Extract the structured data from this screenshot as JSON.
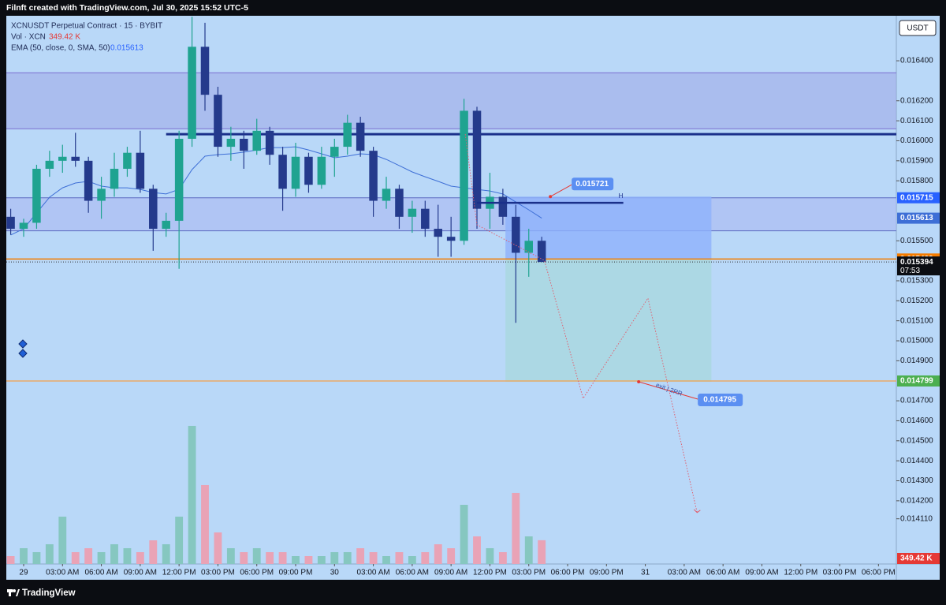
{
  "header": {
    "title": "Filnft created with TradingView.com, Jul 30, 2025 15:52 UTC-5"
  },
  "footer": {
    "brand": "TradingView"
  },
  "chart_data": {
    "type": "candlestick",
    "title": "XCNUSDT Perpetual Contract · 15 · BYBIT",
    "currency": "USDT",
    "countdown": "07:53",
    "grid": false,
    "x": [
      -1,
      0,
      1,
      2,
      3,
      4,
      5,
      6,
      7,
      8,
      9,
      10,
      11,
      12,
      13,
      14,
      15,
      16,
      17,
      18,
      19,
      20,
      21,
      22,
      23,
      24,
      25,
      26,
      27,
      28,
      29,
      30,
      31,
      32,
      33,
      34,
      35,
      36,
      37,
      38,
      39,
      40
    ],
    "xlim": [
      -1.339,
      67.38
    ],
    "xticks": [
      {
        "value": 0,
        "label": "29"
      },
      {
        "value": 3,
        "label": "03:00 AM"
      },
      {
        "value": 6,
        "label": "06:00 AM"
      },
      {
        "value": 9,
        "label": "09:00 AM"
      },
      {
        "value": 12,
        "label": "12:00 PM"
      },
      {
        "value": 15,
        "label": "03:00 PM"
      },
      {
        "value": 18,
        "label": "06:00 PM"
      },
      {
        "value": 21,
        "label": "09:00 PM"
      },
      {
        "value": 24,
        "label": "30"
      },
      {
        "value": 27,
        "label": "03:00 AM"
      },
      {
        "value": 30,
        "label": "06:00 AM"
      },
      {
        "value": 33,
        "label": "09:00 AM"
      },
      {
        "value": 36,
        "label": "12:00 PM"
      },
      {
        "value": 39,
        "label": "03:00 PM"
      },
      {
        "value": 42,
        "label": "06:00 PM"
      },
      {
        "value": 45,
        "label": "09:00 PM"
      },
      {
        "value": 48,
        "label": "31"
      },
      {
        "value": 51,
        "label": "03:00 AM"
      },
      {
        "value": 54,
        "label": "06:00 AM"
      },
      {
        "value": 57,
        "label": "09:00 AM"
      },
      {
        "value": 60,
        "label": "12:00 PM"
      },
      {
        "value": 63,
        "label": "03:00 PM"
      },
      {
        "value": 66,
        "label": "06:00 PM"
      }
    ],
    "ylim": [
      0.013884,
      0.016625
    ],
    "yticks": [
      {
        "value": 0.0164,
        "label": "0.016400"
      },
      {
        "value": 0.0162,
        "label": "0.016200"
      },
      {
        "value": 0.0161,
        "label": "0.016100"
      },
      {
        "value": 0.016,
        "label": "0.016000"
      },
      {
        "value": 0.0159,
        "label": "0.015900"
      },
      {
        "value": 0.0158,
        "label": "0.015800"
      },
      {
        "value": 0.0155,
        "label": "0.015500"
      },
      {
        "value": 0.0153,
        "label": "0.015300"
      },
      {
        "value": 0.0152,
        "label": "0.015200"
      },
      {
        "value": 0.0151,
        "label": "0.015100"
      },
      {
        "value": 0.015,
        "label": "0.015000"
      },
      {
        "value": 0.0149,
        "label": "0.014900"
      },
      {
        "value": 0.0147,
        "label": "0.014700"
      },
      {
        "value": 0.0146,
        "label": "0.014600"
      },
      {
        "value": 0.0145,
        "label": "0.014500"
      },
      {
        "value": 0.0144,
        "label": "0.014400"
      },
      {
        "value": 0.0143,
        "label": "0.014300"
      },
      {
        "value": 0.0142,
        "label": "0.014200"
      },
      {
        "value": 0.01411,
        "label": "0.014110"
      }
    ],
    "series": [
      {
        "name": "XCNUSDT",
        "up_color": "#1fa390",
        "down_color": "#243a8c",
        "open": [
          0.01562,
          0.01556,
          0.01559,
          0.01586,
          0.0159,
          0.01592,
          0.0159,
          0.0157,
          0.01576,
          0.01586,
          0.01594,
          0.01576,
          0.01556,
          0.0156,
          0.01601,
          0.01647,
          0.01623,
          0.01597,
          0.01601,
          0.01595,
          0.01605,
          0.01593,
          0.01576,
          0.01592,
          0.01578,
          0.01592,
          0.01597,
          0.01609,
          0.01595,
          0.0157,
          0.01576,
          0.01562,
          0.01566,
          0.01556,
          0.01552,
          0.0155,
          0.01615,
          0.01566,
          0.01572,
          0.01562,
          0.01544,
          0.0155
        ],
        "high": [
          0.01566,
          0.01561,
          0.01588,
          0.01595,
          0.01598,
          0.01604,
          0.01592,
          0.01582,
          0.01594,
          0.01597,
          0.01605,
          0.01578,
          0.01564,
          0.01605,
          0.01662,
          0.01659,
          0.01627,
          0.01607,
          0.01605,
          0.01611,
          0.01607,
          0.01597,
          0.01599,
          0.01594,
          0.01597,
          0.01601,
          0.01613,
          0.01612,
          0.01597,
          0.01582,
          0.01578,
          0.0157,
          0.0157,
          0.01568,
          0.01562,
          0.01621,
          0.01617,
          0.01584,
          0.01576,
          0.01568,
          0.01556,
          0.01552
        ],
        "low": [
          0.01553,
          0.01552,
          0.01556,
          0.01582,
          0.01584,
          0.01587,
          0.01564,
          0.01561,
          0.01572,
          0.01582,
          0.01574,
          0.01545,
          0.01552,
          0.01536,
          0.01597,
          0.01615,
          0.01592,
          0.0159,
          0.01586,
          0.01593,
          0.01588,
          0.01565,
          0.01572,
          0.01574,
          0.01576,
          0.01582,
          0.01593,
          0.01592,
          0.01562,
          0.01566,
          0.01556,
          0.01554,
          0.01552,
          0.01542,
          0.01542,
          0.01548,
          0.01556,
          0.01556,
          0.01558,
          0.01509,
          0.01532,
          0.0154
        ],
        "close": [
          0.01556,
          0.01559,
          0.01586,
          0.0159,
          0.01592,
          0.0159,
          0.0157,
          0.01576,
          0.01586,
          0.01594,
          0.01576,
          0.01556,
          0.0156,
          0.01601,
          0.01647,
          0.01623,
          0.01597,
          0.01601,
          0.01595,
          0.01605,
          0.01593,
          0.01576,
          0.01592,
          0.01578,
          0.01592,
          0.01597,
          0.01609,
          0.01595,
          0.0157,
          0.01576,
          0.01562,
          0.01566,
          0.01556,
          0.01552,
          0.0155,
          0.01615,
          0.01566,
          0.01572,
          0.01562,
          0.01544,
          0.0155,
          0.015394
        ]
      }
    ],
    "volume": {
      "name": "Vol · XCN",
      "up_color": "#86c7c0",
      "down_color": "#e9a3b6",
      "label_color": "#e53935",
      "ylim": [
        0,
        8060
      ],
      "values": [
        116,
        232,
        174,
        290,
        696,
        174,
        232,
        174,
        290,
        232,
        174,
        348,
        290,
        696,
        2030,
        1160,
        464,
        232,
        174,
        232,
        174,
        174,
        116,
        116,
        116,
        174,
        174,
        232,
        174,
        116,
        174,
        116,
        174,
        290,
        232,
        870,
        406,
        232,
        174,
        1044,
        406,
        349.42
      ],
      "value_labels": [
        null,
        null,
        null,
        null,
        null,
        null,
        null,
        null,
        null,
        null,
        null,
        null,
        null,
        null,
        null,
        null,
        null,
        null,
        null,
        null,
        null,
        null,
        null,
        null,
        null,
        null,
        null,
        null,
        null,
        null,
        null,
        null,
        null,
        null,
        null,
        null,
        null,
        null,
        null,
        null,
        null,
        "349.42 K"
      ]
    },
    "ema": {
      "name": "EMA (50, close, 0, SMA, 50)",
      "color": "#3e6fd6",
      "values": [
        0.015529,
        0.01556,
        0.015639,
        0.015718,
        0.015765,
        0.015789,
        0.015797,
        0.015773,
        0.015765,
        0.015765,
        0.015757,
        0.015741,
        0.015734,
        0.015757,
        0.015856,
        0.015923,
        0.015931,
        0.015935,
        0.015943,
        0.015954,
        0.015966,
        0.015966,
        0.01597,
        0.015954,
        0.015935,
        0.015915,
        0.015923,
        0.015935,
        0.015931,
        0.015907,
        0.015876,
        0.015844,
        0.01582,
        0.015797,
        0.015773,
        0.015765,
        0.015757,
        0.015749,
        0.015734,
        0.015694,
        0.015655,
        0.015613
      ]
    },
    "drawings": {
      "zones": [
        {
          "from": 0.01606,
          "to": 0.01634,
          "color": "#9fa8e6",
          "line_color": "#7b6fd0"
        },
        {
          "from": 0.01555,
          "to": 0.015715,
          "color": "#a9b6f0",
          "line_color": "#5c6bc0",
          "label_color": "#2962ff"
        }
      ],
      "lines": [
        {
          "value": 0.016033,
          "start": 11,
          "color": "#1a2f8a",
          "width": 3
        },
        {
          "value": 0.015409,
          "color": "#f57c00",
          "width": 1.5,
          "label_color": "#f57c00"
        },
        {
          "value": 0.014799,
          "color": "#f5a04a",
          "width": 1.2,
          "label_color": "#4caf50"
        }
      ],
      "h_line": {
        "value": 0.01569,
        "start": 35,
        "end": 46.3,
        "color": "#1a2f8a",
        "text": "H"
      },
      "position": {
        "entry": 0.015409,
        "stop": 0.015721,
        "target": 0.014795,
        "start": 37.2,
        "end": 53.1,
        "stop_color": "#8fb2fb",
        "target_color": "#a9d8e0",
        "callout_color": "#5b8ff2",
        "target_note": "exit | 2RR"
      },
      "projection": {
        "color": "#e06070",
        "x": [
          34.1,
          35.0,
          40.2,
          43.2,
          48.2,
          52.0
        ],
        "y": [
          0.016033,
          0.01558,
          0.015402,
          0.014712,
          0.015213,
          0.014141
        ]
      }
    }
  }
}
